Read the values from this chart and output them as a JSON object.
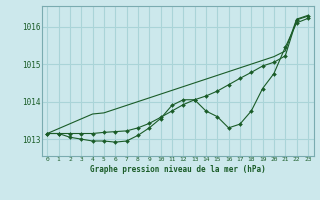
{
  "title": "Graphe pression niveau de la mer (hPa)",
  "bg_color": "#cce8ec",
  "grid_color": "#aad4d8",
  "line_color": "#1a5c28",
  "xlim": [
    -0.5,
    23.5
  ],
  "ylim": [
    1012.55,
    1016.55
  ],
  "yticks": [
    1013,
    1014,
    1015,
    1016
  ],
  "xticks": [
    0,
    1,
    2,
    3,
    4,
    5,
    6,
    7,
    8,
    9,
    10,
    11,
    12,
    13,
    14,
    15,
    16,
    17,
    18,
    19,
    20,
    21,
    22,
    23
  ],
  "line_straight": [
    1013.15,
    1013.28,
    1013.41,
    1013.54,
    1013.67,
    1013.7,
    1013.8,
    1013.9,
    1014.0,
    1014.1,
    1014.2,
    1014.3,
    1014.4,
    1014.5,
    1014.6,
    1014.7,
    1014.8,
    1014.9,
    1015.0,
    1015.1,
    1015.2,
    1015.35,
    1016.2,
    1016.3
  ],
  "line_wavy": [
    1013.15,
    1013.15,
    1013.05,
    1013.0,
    1012.95,
    1012.95,
    1012.92,
    1012.95,
    1013.1,
    1013.3,
    1013.55,
    1013.9,
    1014.05,
    1014.05,
    1013.75,
    1013.6,
    1013.3,
    1013.4,
    1013.75,
    1014.35,
    1014.75,
    1015.45,
    1016.1,
    1016.22
  ],
  "line_trend": [
    1013.15,
    1013.15,
    1013.15,
    1013.15,
    1013.15,
    1013.18,
    1013.2,
    1013.22,
    1013.3,
    1013.42,
    1013.58,
    1013.75,
    1013.92,
    1014.05,
    1014.15,
    1014.28,
    1014.45,
    1014.62,
    1014.78,
    1014.95,
    1015.05,
    1015.22,
    1016.18,
    1016.28
  ]
}
